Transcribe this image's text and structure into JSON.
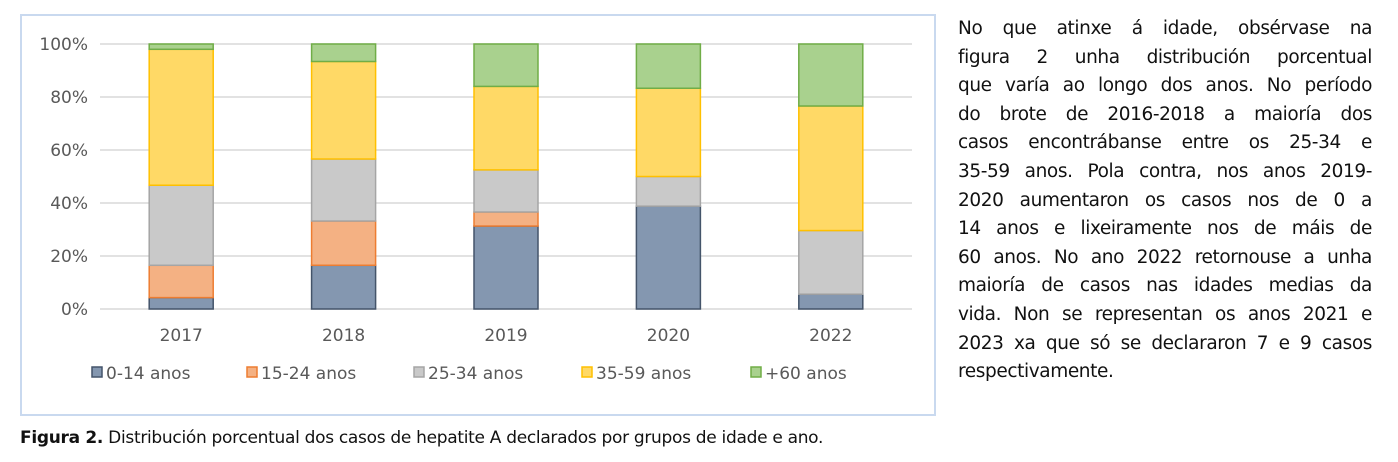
{
  "chart_data": {
    "type": "bar",
    "stacked": true,
    "categories": [
      "2017",
      "2018",
      "2019",
      "2020",
      "2022"
    ],
    "series": [
      {
        "name": "0-14 anos",
        "color": "#8497b0",
        "stroke": "#44546a",
        "values": [
          4.3,
          16.5,
          31.3,
          38.8,
          5.6
        ]
      },
      {
        "name": "15-24 anos",
        "color": "#f4b183",
        "stroke": "#ed7d31",
        "values": [
          12.2,
          16.7,
          5.3,
          0,
          0
        ]
      },
      {
        "name": "25-34 anos",
        "color": "#c9c9c9",
        "stroke": "#a5a5a5",
        "values": [
          30.2,
          23.4,
          15.9,
          11.2,
          24.0
        ]
      },
      {
        "name": "35-59 anos",
        "color": "#ffd966",
        "stroke": "#ffc000",
        "values": [
          51.3,
          36.8,
          31.5,
          33.3,
          47.0
        ]
      },
      {
        "name": "+60 anos",
        "color": "#a9d18e",
        "stroke": "#70ad47",
        "values": [
          2.0,
          6.6,
          16.0,
          16.7,
          23.4
        ]
      }
    ],
    "yticks": [
      "0%",
      "20%",
      "40%",
      "60%",
      "80%",
      "100%"
    ],
    "ylim": [
      0,
      100
    ],
    "grid": true,
    "legend_position": "bottom"
  },
  "caption": {
    "label": "Figura 2.",
    "text": " Distribución porcentual dos casos de hepatite A declarados por grupos de idade e ano."
  },
  "paragraph_lines": [
    "No que atinxe á idade, obsérvase na",
    "figura 2 unha distribución porcentual",
    "que varía ao longo dos anos. No período",
    "do brote de 2016-2018 a maioría dos",
    "casos encontrábanse entre os 25-34 e",
    "35-59 anos. Pola contra, nos anos 2019-",
    "2020 aumentaron os casos nos de 0 a",
    "14 anos e lixeiramente nos de máis de",
    "60 anos. No ano 2022 retornouse a unha",
    "maioría de casos nas idades medias da",
    "vida. Non se representan os anos 2021 e",
    "2023 xa que só se declararon 7 e 9 casos",
    "respectivamente."
  ]
}
